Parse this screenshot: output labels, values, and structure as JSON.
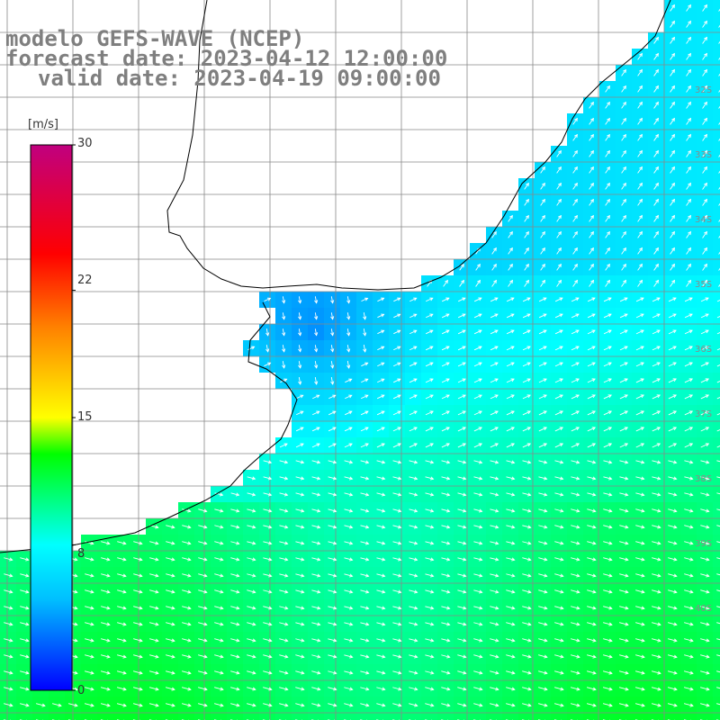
{
  "title": {
    "model": "modelo GEFS-WAVE (NCEP)",
    "forecast": "forecast date: 2023-04-12 12:00:00",
    "valid": "valid date: 2023-04-19 09:00:00"
  },
  "colorbar": {
    "unit": "[m/s]",
    "min": 0,
    "max": 30,
    "ticks": [
      "30",
      "22",
      "15",
      "8",
      "0"
    ],
    "tick_values": [
      30,
      22,
      15,
      8,
      0
    ],
    "colors": [
      "#0000ff",
      "#00bfff",
      "#00ffff",
      "#00ff00",
      "#ffff00",
      "#ff8000",
      "#ff0000",
      "#c0007f"
    ],
    "color_stops": [
      0,
      5,
      8,
      13,
      15,
      20,
      24,
      30
    ]
  },
  "lat_labels": [
    "32S",
    "33S",
    "34S",
    "35S",
    "36S",
    "37S",
    "38S",
    "39S",
    "40S"
  ],
  "field": {
    "variable": "wind speed",
    "description_units": "m/s"
  },
  "colors": {
    "land": "#ffffff",
    "grid": "#888888",
    "coast": "#000000",
    "arrows": "#ffffff",
    "title": "#7f7f7f"
  }
}
